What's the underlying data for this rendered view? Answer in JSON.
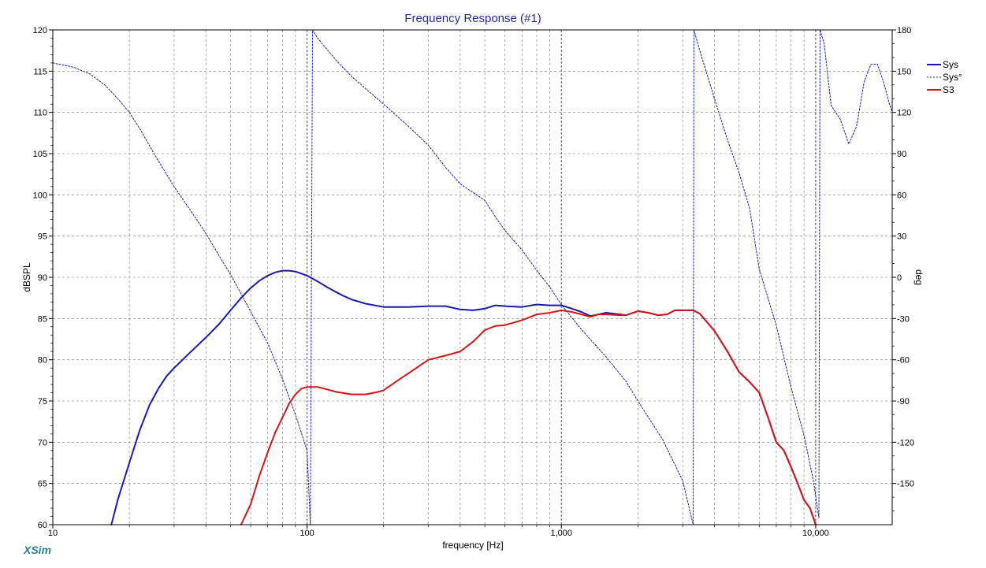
{
  "brand": "XSim",
  "colors": {
    "sys": "#1a1aa8",
    "s3": "#d01818",
    "grid": "#777777",
    "title": "#2b2b9a"
  },
  "chart_data": {
    "type": "line",
    "title": "Frequency Response (#1)",
    "xlabel": "frequency [Hz]",
    "ylabel": "dBSPL",
    "y2label": "deg",
    "xscale": "log",
    "xlim": [
      10,
      20000
    ],
    "ylim": [
      60,
      120
    ],
    "y2lim": [
      -180,
      180
    ],
    "grid": true,
    "legend": "right",
    "x_ticks": [
      {
        "v": 10,
        "label": "10"
      },
      {
        "v": 100,
        "label": "100"
      },
      {
        "v": 1000,
        "label": "1,000"
      },
      {
        "v": 10000,
        "label": "10,000"
      }
    ],
    "y_ticks": [
      60,
      65,
      70,
      75,
      80,
      85,
      90,
      95,
      100,
      105,
      110,
      115,
      120
    ],
    "y2_ticks": [
      {
        "v": 180,
        "label": "180"
      },
      {
        "v": 150,
        "label": "150"
      },
      {
        "v": 120,
        "label": "120"
      },
      {
        "v": 90,
        "label": "90"
      },
      {
        "v": 60,
        "label": "60"
      },
      {
        "v": 30,
        "label": "30"
      },
      {
        "v": 0,
        "label": "0"
      },
      {
        "v": -30,
        "label": "-30"
      },
      {
        "v": -60,
        "label": "-60"
      },
      {
        "v": -90,
        "label": "-90"
      },
      {
        "v": -120,
        "label": "-120"
      },
      {
        "v": -150,
        "label": "-150"
      }
    ],
    "series": [
      {
        "name": "Sys",
        "axis": "y",
        "style": "solid",
        "color": "#1a1aa8",
        "points": [
          [
            17,
            60
          ],
          [
            18,
            63
          ],
          [
            20,
            67.5
          ],
          [
            22,
            71.5
          ],
          [
            24,
            74.5
          ],
          [
            26,
            76.5
          ],
          [
            28,
            78
          ],
          [
            30,
            79
          ],
          [
            35,
            81
          ],
          [
            40,
            82.7
          ],
          [
            45,
            84.3
          ],
          [
            50,
            86
          ],
          [
            55,
            87.5
          ],
          [
            60,
            88.7
          ],
          [
            65,
            89.6
          ],
          [
            70,
            90.2
          ],
          [
            75,
            90.6
          ],
          [
            80,
            90.8
          ],
          [
            85,
            90.8
          ],
          [
            90,
            90.7
          ],
          [
            100,
            90.2
          ],
          [
            110,
            89.5
          ],
          [
            120,
            88.8
          ],
          [
            130,
            88.2
          ],
          [
            140,
            87.7
          ],
          [
            150,
            87.3
          ],
          [
            170,
            86.8
          ],
          [
            200,
            86.4
          ],
          [
            250,
            86.4
          ],
          [
            300,
            86.5
          ],
          [
            350,
            86.5
          ],
          [
            400,
            86.1
          ],
          [
            450,
            86
          ],
          [
            500,
            86.2
          ],
          [
            550,
            86.6
          ],
          [
            600,
            86.5
          ],
          [
            700,
            86.4
          ],
          [
            800,
            86.7
          ],
          [
            900,
            86.6
          ],
          [
            1000,
            86.6
          ],
          [
            1100,
            86.2
          ],
          [
            1200,
            85.8
          ],
          [
            1300,
            85.3
          ],
          [
            1400,
            85.5
          ],
          [
            1500,
            85.7
          ],
          [
            1700,
            85.5
          ],
          [
            1800,
            85.4
          ],
          [
            2000,
            85.9
          ],
          [
            2200,
            85.7
          ],
          [
            2400,
            85.4
          ],
          [
            2600,
            85.5
          ],
          [
            2800,
            86
          ],
          [
            3000,
            86
          ],
          [
            3300,
            86
          ],
          [
            3500,
            85.6
          ],
          [
            4000,
            83.5
          ],
          [
            4500,
            81
          ],
          [
            5000,
            78.5
          ],
          [
            5500,
            77.3
          ],
          [
            6000,
            76
          ],
          [
            6500,
            73
          ],
          [
            7000,
            70
          ],
          [
            7500,
            69
          ],
          [
            8000,
            67
          ],
          [
            8500,
            65
          ],
          [
            9000,
            63
          ],
          [
            9500,
            62
          ],
          [
            10000,
            60
          ]
        ]
      },
      {
        "name": "Sys°",
        "axis": "y2",
        "style": "dashed",
        "color": "#1a1aa8",
        "segments": [
          [
            [
              10,
              156
            ],
            [
              12,
              153
            ],
            [
              14,
              148
            ],
            [
              16,
              140
            ],
            [
              18,
              130
            ],
            [
              20,
              120
            ],
            [
              22,
              108
            ],
            [
              25,
              90
            ],
            [
              30,
              66
            ],
            [
              35,
              48
            ],
            [
              40,
              32
            ],
            [
              45,
              16
            ],
            [
              50,
              2
            ],
            [
              55,
              -12
            ],
            [
              60,
              -25
            ],
            [
              70,
              -48
            ],
            [
              80,
              -74
            ],
            [
              90,
              -100
            ],
            [
              100,
              -126
            ],
            [
              103,
              -180
            ]
          ],
          [
            [
              103,
              -180
            ],
            [
              105,
              180
            ],
            [
              110,
              174
            ],
            [
              130,
              158
            ],
            [
              150,
              146
            ],
            [
              200,
              126
            ],
            [
              250,
              110
            ],
            [
              300,
              96
            ],
            [
              350,
              80
            ],
            [
              400,
              68
            ],
            [
              500,
              56
            ],
            [
              550,
              44
            ],
            [
              600,
              34
            ],
            [
              700,
              20
            ],
            [
              800,
              5
            ],
            [
              900,
              -7
            ],
            [
              1000,
              -20
            ],
            [
              1200,
              -38
            ],
            [
              1500,
              -58
            ],
            [
              1800,
              -76
            ],
            [
              2000,
              -90
            ],
            [
              2500,
              -118
            ],
            [
              3000,
              -148
            ],
            [
              3300,
              -180
            ]
          ],
          [
            [
              3300,
              -180
            ],
            [
              3320,
              180
            ],
            [
              3500,
              165
            ],
            [
              4000,
              130
            ],
            [
              4500,
              100
            ],
            [
              5000,
              76
            ],
            [
              5500,
              50
            ],
            [
              6000,
              6
            ],
            [
              7000,
              -35
            ],
            [
              8000,
              -80
            ],
            [
              9000,
              -115
            ],
            [
              9800,
              -148
            ],
            [
              10300,
              -175
            ]
          ],
          [
            [
              10300,
              -175
            ],
            [
              10400,
              180
            ],
            [
              10800,
              170
            ],
            [
              11500,
              125
            ],
            [
              12500,
              115
            ],
            [
              13500,
              97
            ],
            [
              14500,
              110
            ],
            [
              15500,
              142
            ],
            [
              16500,
              155
            ],
            [
              17500,
              155
            ],
            [
              18500,
              142
            ],
            [
              19500,
              126
            ],
            [
              20000,
              120
            ]
          ]
        ]
      },
      {
        "name": "S3",
        "axis": "y",
        "style": "solid",
        "color": "#d01818",
        "points": [
          [
            55,
            60
          ],
          [
            60,
            62.5
          ],
          [
            65,
            66
          ],
          [
            70,
            68.8
          ],
          [
            75,
            71.2
          ],
          [
            80,
            73
          ],
          [
            85,
            74.7
          ],
          [
            90,
            75.8
          ],
          [
            95,
            76.5
          ],
          [
            100,
            76.7
          ],
          [
            110,
            76.7
          ],
          [
            120,
            76.4
          ],
          [
            130,
            76.1
          ],
          [
            150,
            75.8
          ],
          [
            170,
            75.8
          ],
          [
            190,
            76.1
          ],
          [
            200,
            76.3
          ],
          [
            230,
            77.6
          ],
          [
            260,
            78.7
          ],
          [
            300,
            80
          ],
          [
            350,
            80.5
          ],
          [
            400,
            81
          ],
          [
            450,
            82.2
          ],
          [
            500,
            83.6
          ],
          [
            550,
            84.1
          ],
          [
            600,
            84.2
          ],
          [
            700,
            84.8
          ],
          [
            800,
            85.5
          ],
          [
            900,
            85.7
          ],
          [
            1000,
            86
          ],
          [
            1100,
            85.8
          ],
          [
            1200,
            85.5
          ],
          [
            1300,
            85.2
          ],
          [
            1400,
            85.5
          ],
          [
            1500,
            85.5
          ],
          [
            1700,
            85.4
          ],
          [
            1800,
            85.4
          ],
          [
            2000,
            85.9
          ],
          [
            2200,
            85.7
          ],
          [
            2400,
            85.4
          ],
          [
            2600,
            85.5
          ],
          [
            2800,
            86
          ],
          [
            3000,
            86
          ],
          [
            3300,
            86
          ],
          [
            3500,
            85.6
          ],
          [
            4000,
            83.5
          ],
          [
            4500,
            81
          ],
          [
            5000,
            78.5
          ],
          [
            5500,
            77.3
          ],
          [
            6000,
            76
          ],
          [
            6500,
            73
          ],
          [
            7000,
            70
          ],
          [
            7500,
            69
          ],
          [
            8000,
            67
          ],
          [
            8500,
            65
          ],
          [
            9000,
            63
          ],
          [
            9500,
            62
          ],
          [
            10000,
            60
          ]
        ]
      }
    ]
  }
}
